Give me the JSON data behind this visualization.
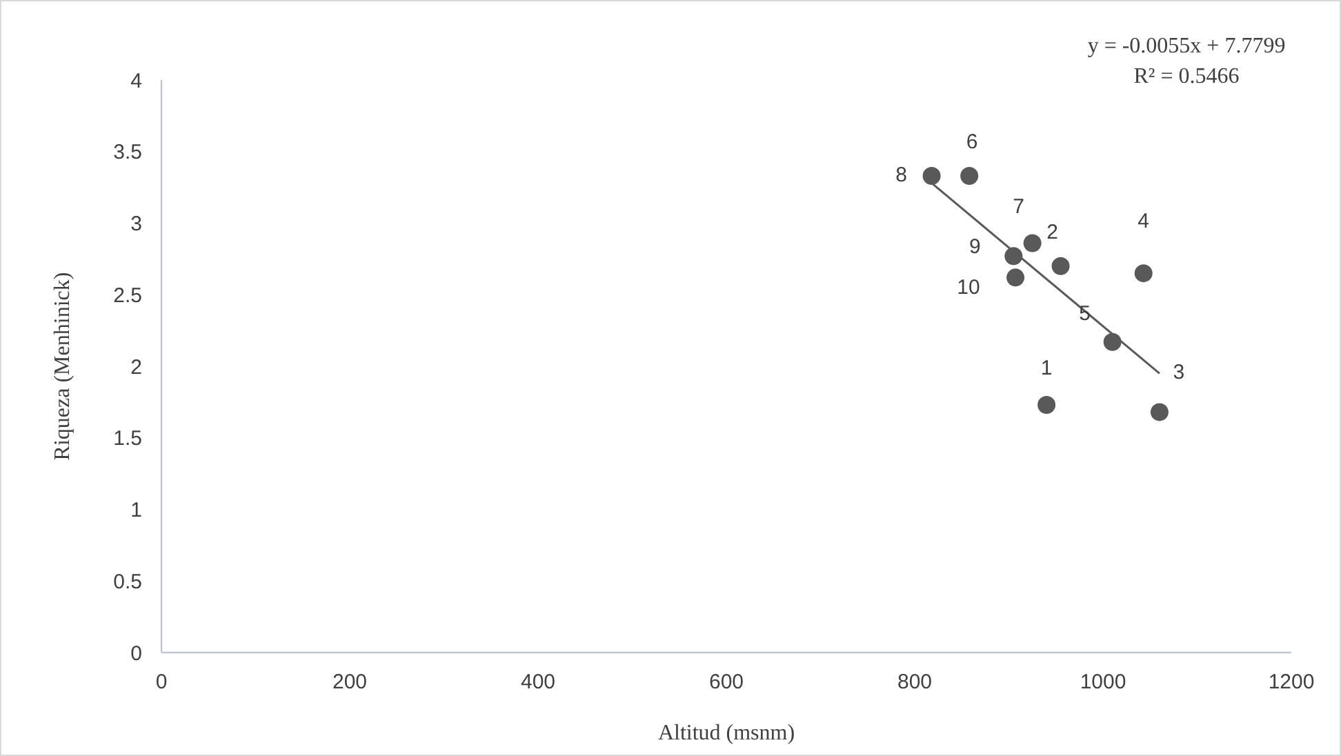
{
  "chart_data": {
    "type": "scatter",
    "xlabel": "Altitud (msnm)",
    "ylabel": "Riqueza (Menhinick)",
    "xlim": [
      0,
      1200
    ],
    "xticks": [
      0,
      200,
      400,
      600,
      800,
      1000,
      1200
    ],
    "ylim": [
      0,
      4
    ],
    "yticks": [
      0,
      0.5,
      1,
      1.5,
      2,
      2.5,
      3,
      3.5,
      4
    ],
    "grid": false,
    "marker": "circle",
    "series": [
      {
        "color": "#595959",
        "x": [
          940,
          955,
          1060,
          1043,
          1010,
          858,
          925,
          818,
          905,
          907
        ],
        "values": [
          1.73,
          2.7,
          1.68,
          2.65,
          2.17,
          3.33,
          2.86,
          3.33,
          2.77,
          2.62
        ]
      },
      {
        "type": "line",
        "marker": "none",
        "color": "#595959",
        "x": [
          818,
          1060
        ],
        "values": [
          3.28,
          1.95
        ]
      }
    ],
    "annotations": [
      {
        "text": "1",
        "x": 940,
        "y": 1.73
      },
      {
        "text": "2",
        "x": 955,
        "y": 2.7
      },
      {
        "text": "3",
        "x": 1060,
        "y": 1.68
      },
      {
        "text": "4",
        "x": 1043,
        "y": 2.65
      },
      {
        "text": "5",
        "x": 1010,
        "y": 2.17
      },
      {
        "text": "6",
        "x": 858,
        "y": 3.33
      },
      {
        "text": "7",
        "x": 925,
        "y": 2.86
      },
      {
        "text": "8",
        "x": 818,
        "y": 3.33
      },
      {
        "text": "9",
        "x": 905,
        "y": 2.77
      },
      {
        "text": "10",
        "x": 907,
        "y": 2.62
      },
      "y = -0.0055x + 7.7799",
      "R² = 0.5466"
    ]
  }
}
